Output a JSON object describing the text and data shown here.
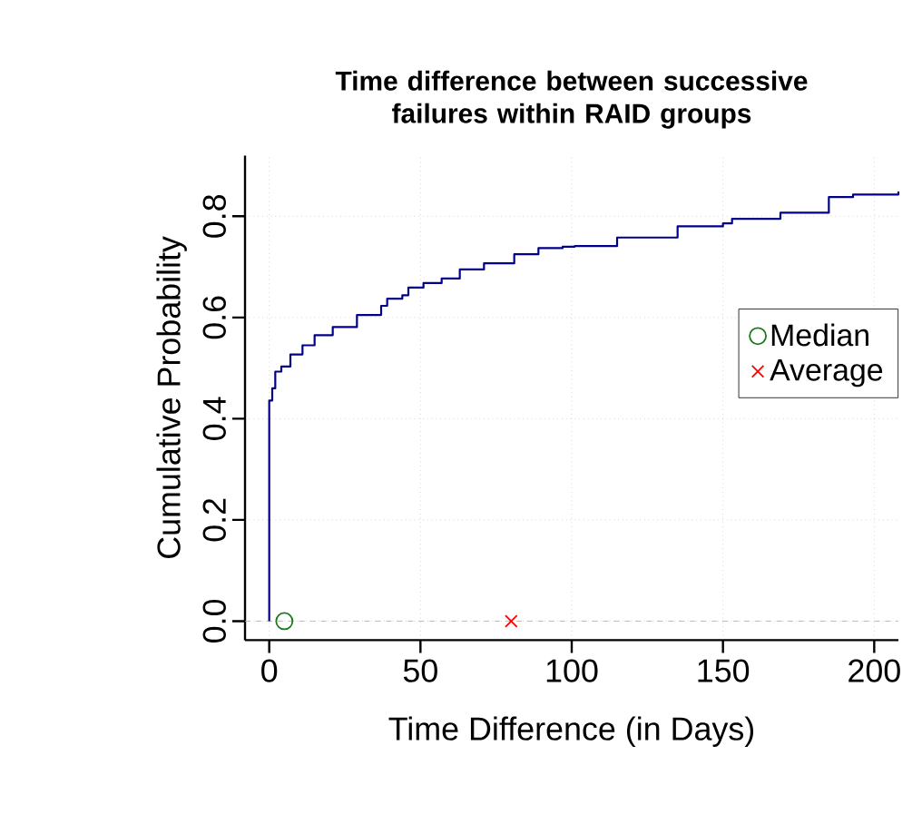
{
  "chart_data": {
    "type": "step",
    "title": "Time difference between successive failures within RAID groups",
    "xlabel": "Time Difference (in Days)",
    "ylabel": "Cumulative Probability",
    "xlim": [
      -8,
      208
    ],
    "ylim": [
      -0.0376,
      0.92
    ],
    "xticks": [
      0,
      50,
      100,
      150,
      200
    ],
    "yticks": [
      {
        "value": 0,
        "label": "0.0"
      },
      {
        "value": 0.2,
        "label": "0.2"
      },
      {
        "value": 0.4,
        "label": "0.4"
      },
      {
        "value": 0.6,
        "label": "0.6"
      },
      {
        "value": 0.8,
        "label": "0.8"
      }
    ],
    "grid": true,
    "legend": "right",
    "ref_lines": [
      {
        "axis": "y",
        "value": 0,
        "color": "#aaaaaa",
        "line_style": "dashed"
      }
    ],
    "series": [
      {
        "color": "#00008b",
        "marker": "none",
        "line_style": "solid",
        "x": [
          0,
          0,
          1,
          2,
          4,
          7,
          11,
          15,
          21,
          29,
          37,
          39,
          44,
          46,
          51,
          57,
          63,
          71,
          81,
          89,
          97,
          101,
          115,
          135,
          150,
          153,
          169,
          185,
          193,
          208
        ],
        "values": [
          0,
          0.436,
          0.46,
          0.493,
          0.503,
          0.527,
          0.545,
          0.565,
          0.581,
          0.605,
          0.623,
          0.637,
          0.644,
          0.659,
          0.668,
          0.677,
          0.695,
          0.707,
          0.725,
          0.737,
          0.74,
          0.741,
          0.758,
          0.78,
          0.786,
          0.795,
          0.807,
          0.838,
          0.843,
          0.849
        ]
      },
      {
        "type": "scatter",
        "name": "Median",
        "color": "#1a7a1a",
        "marker": "circle",
        "x": [
          5
        ],
        "values": [
          0
        ]
      },
      {
        "type": "scatter",
        "name": "Average",
        "color": "#ff0000",
        "marker": "cross",
        "x": [
          80
        ],
        "values": [
          0
        ]
      }
    ]
  }
}
